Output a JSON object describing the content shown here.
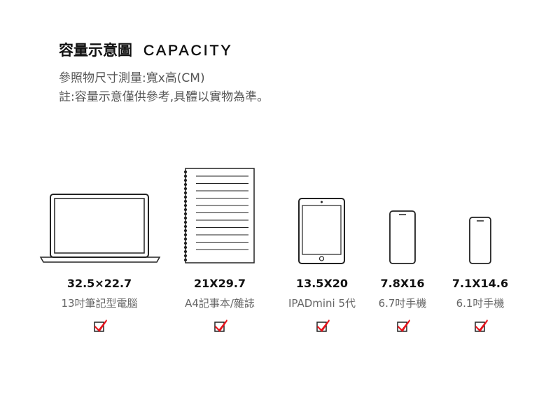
{
  "header": {
    "title_zh": "容量示意圖",
    "title_en": "CAPACITY",
    "line1": "參照物尺寸測量:寬x高(CM)",
    "line2": "註:容量示意僅供參考,具體以實物為準。"
  },
  "items": [
    {
      "size": "32.5×22.7",
      "name": "13吋筆記型電腦",
      "icon": "laptop-icon",
      "fits": true
    },
    {
      "size": "21X29.7",
      "name": "A4記事本/雜誌",
      "icon": "notebook-icon",
      "fits": true
    },
    {
      "size": "13.5X20",
      "name": "IPADmini 5代",
      "icon": "tablet-icon",
      "fits": true
    },
    {
      "size": "7.8X16",
      "name": "6.7吋手機",
      "icon": "phone-icon",
      "fits": true
    },
    {
      "size": "7.1X14.6",
      "name": "6.1吋手機",
      "icon": "phone-icon",
      "fits": true
    }
  ],
  "colors": {
    "check": "#e8141c",
    "text": "#111111",
    "subtext": "#666666"
  }
}
